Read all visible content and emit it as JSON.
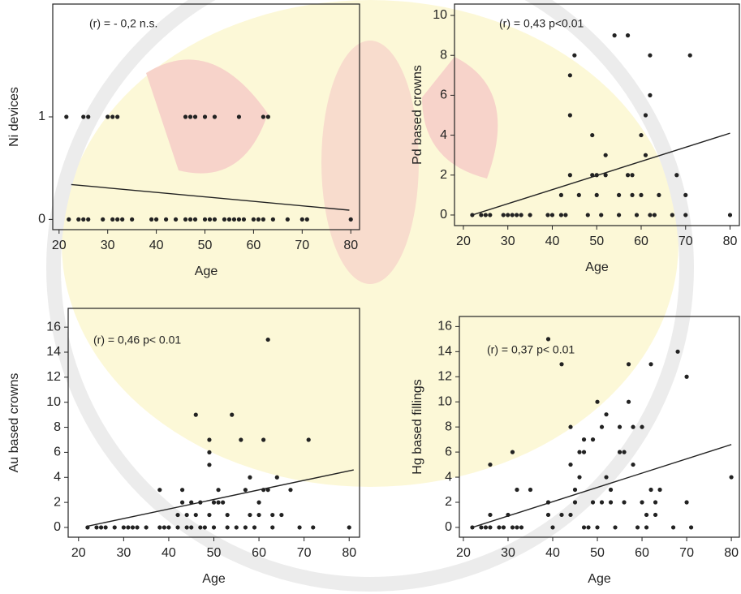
{
  "chart_data": [
    {
      "type": "scatter",
      "annotation": "(r) = - 0,2  n.s.",
      "x_label": "Age",
      "y_label": "Ni devices",
      "xlim": [
        18.7,
        81.8
      ],
      "ylim": [
        -0.1,
        2.1
      ],
      "xticks": [
        20,
        30,
        40,
        50,
        60,
        70,
        80
      ],
      "yticks": [
        0,
        1
      ],
      "color": "#222222",
      "x": [
        21.5,
        25,
        26,
        30,
        31,
        32,
        46,
        47,
        48,
        50,
        52,
        57,
        62,
        63,
        22,
        24,
        25,
        26,
        29,
        31,
        32,
        33,
        35,
        39,
        40,
        42,
        44,
        46,
        47,
        48,
        50,
        51,
        52,
        54,
        55,
        56,
        57,
        58,
        60,
        61,
        62,
        64,
        67,
        70,
        71,
        80
      ],
      "y": [
        1,
        1,
        1,
        1,
        1,
        1,
        1,
        1,
        1,
        1,
        1,
        1,
        1,
        1,
        0,
        0,
        0,
        0,
        0,
        0,
        0,
        0,
        0,
        0,
        0,
        0,
        0,
        0,
        0,
        0,
        0,
        0,
        0,
        0,
        0,
        0,
        0,
        0,
        0,
        0,
        0,
        0,
        0,
        0,
        0,
        0
      ],
      "trend": {
        "x": [
          22.5,
          79.7
        ],
        "y": [
          0.34,
          0.09
        ]
      }
    },
    {
      "type": "scatter",
      "annotation": "(r) = 0,43    p<0.01",
      "x_label": "Age",
      "y_label": "Pd based crowns",
      "xlim": [
        18,
        82.1
      ],
      "ylim": [
        -0.53,
        10.57
      ],
      "xticks": [
        20,
        30,
        40,
        50,
        60,
        70,
        80
      ],
      "yticks": [
        0,
        2,
        4,
        6,
        8,
        10
      ],
      "color": "#222222",
      "x": [
        22,
        24,
        25,
        26,
        29,
        30,
        31,
        32,
        33,
        35,
        39,
        40,
        42,
        42,
        43,
        44,
        44,
        44,
        45,
        46,
        48,
        49,
        49,
        50,
        50,
        51,
        52,
        52,
        54,
        55,
        55,
        57,
        57,
        58,
        58,
        59,
        60,
        60,
        61,
        61,
        62,
        62,
        62,
        63,
        64,
        67,
        68,
        70,
        70,
        71,
        80
      ],
      "y": [
        0,
        0,
        0,
        0,
        0,
        0,
        0,
        0,
        0,
        0,
        0,
        0,
        0,
        1,
        0,
        2,
        5,
        7,
        8,
        1,
        0,
        2,
        4,
        1,
        2,
        0,
        2,
        3,
        9,
        1,
        0,
        9,
        2,
        2,
        1,
        0,
        4,
        1,
        3,
        5,
        6,
        8,
        0,
        0,
        1,
        0,
        2,
        1,
        0,
        8,
        0
      ],
      "trend": {
        "x": [
          22,
          80
        ],
        "y": [
          0,
          4.1
        ]
      }
    },
    {
      "type": "scatter",
      "annotation": "(r) = 0,46    p< 0.01",
      "x_label": "Age",
      "y_label": "Au based crowns",
      "xlim": [
        17.7,
        82.3
      ],
      "ylim": [
        -0.78,
        17.5
      ],
      "xticks": [
        20,
        30,
        40,
        50,
        60,
        70,
        80
      ],
      "yticks": [
        0,
        2,
        4,
        6,
        8,
        10,
        12,
        14,
        16
      ],
      "color": "#222222",
      "x": [
        22,
        24,
        25,
        26,
        28,
        30,
        31,
        32,
        33,
        35,
        38,
        38,
        39,
        40,
        42,
        42,
        43,
        43,
        44,
        44,
        45,
        45,
        46,
        46,
        47,
        47,
        48,
        49,
        49,
        49,
        49,
        50,
        50,
        51,
        51,
        52,
        53,
        53,
        54,
        55,
        56,
        57,
        57,
        58,
        58,
        59,
        60,
        60,
        61,
        61,
        62,
        62,
        63,
        63,
        64,
        65,
        67,
        69,
        71,
        72,
        80
      ],
      "y": [
        0,
        0,
        0,
        0,
        0,
        0,
        0,
        0,
        0,
        0,
        3,
        0,
        0,
        0,
        1,
        0,
        2,
        3,
        0,
        1,
        2,
        0,
        9,
        1,
        2,
        0,
        0,
        7,
        6,
        5,
        1,
        0,
        2,
        3,
        2,
        2,
        1,
        0,
        9,
        0,
        7,
        3,
        0,
        4,
        1,
        0,
        2,
        1,
        7,
        3,
        15,
        3,
        1,
        0,
        4,
        1,
        3,
        0,
        7,
        0,
        0
      ],
      "trend": {
        "x": [
          22,
          81
        ],
        "y": [
          0.1,
          4.6
        ]
      }
    },
    {
      "type": "scatter",
      "annotation": "(r) = 0,37    p< 0.01",
      "x_label": "Age",
      "y_label": "Hg based fillings",
      "xlim": [
        19.1,
        81.8
      ],
      "ylim": [
        -0.78,
        16.8
      ],
      "xticks": [
        20,
        30,
        40,
        50,
        60,
        70,
        80
      ],
      "yticks": [
        0,
        2,
        4,
        6,
        8,
        10,
        12,
        14,
        16
      ],
      "color": "#222222",
      "x": [
        22,
        24,
        25,
        26,
        26,
        26,
        28,
        29,
        30,
        31,
        31,
        32,
        32,
        33,
        35,
        39,
        39,
        39,
        40,
        42,
        42,
        44,
        44,
        44,
        45,
        45,
        46,
        46,
        47,
        47,
        47,
        48,
        49,
        49,
        50,
        50,
        51,
        51,
        52,
        52,
        53,
        53,
        54,
        55,
        55,
        56,
        56,
        57,
        57,
        58,
        58,
        59,
        60,
        60,
        61,
        61,
        62,
        62,
        63,
        63,
        64,
        67,
        68,
        70,
        70,
        71,
        80
      ],
      "y": [
        0,
        0,
        0,
        5,
        0,
        1,
        0,
        0,
        1,
        6,
        0,
        3,
        0,
        0,
        3,
        15,
        2,
        1,
        0,
        13,
        1,
        8,
        5,
        1,
        3,
        2,
        4,
        6,
        6,
        7,
        0,
        0,
        2,
        7,
        10,
        0,
        8,
        2,
        4,
        9,
        3,
        2,
        0,
        6,
        8,
        6,
        2,
        13,
        10,
        8,
        5,
        0,
        8,
        2,
        1,
        0,
        13,
        3,
        2,
        1,
        3,
        0,
        14,
        12,
        2,
        0,
        4
      ],
      "trend": {
        "x": [
          22,
          80
        ],
        "y": [
          0,
          6.6
        ]
      }
    }
  ]
}
